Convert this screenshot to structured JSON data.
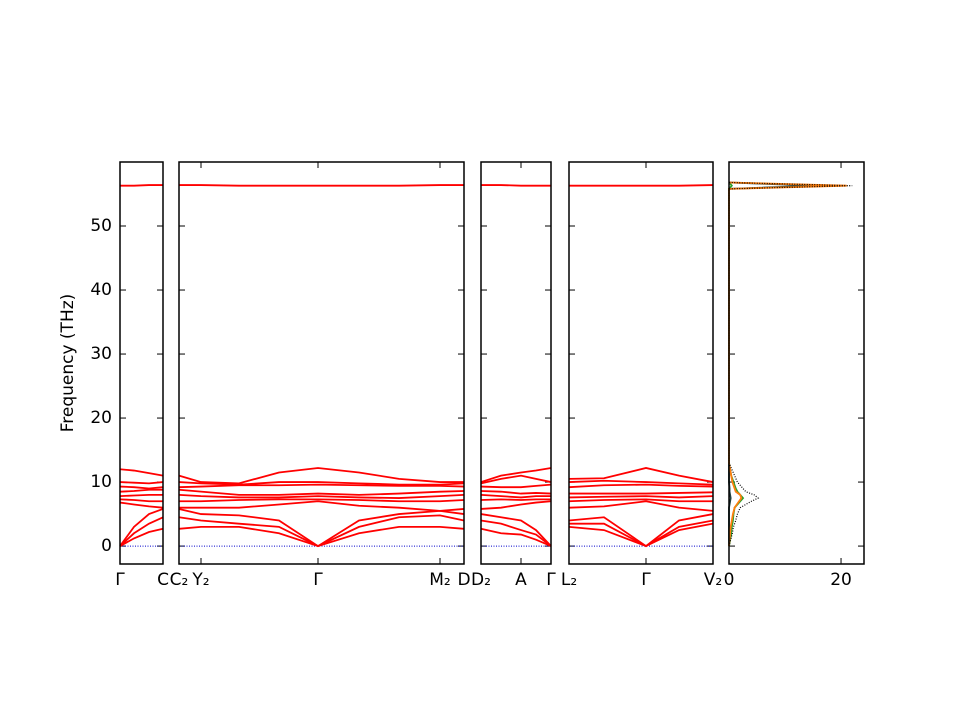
{
  "chart_data": [
    {
      "type": "bands",
      "color": "#ff0000",
      "hline": 0,
      "hline_color": "#0000cc",
      "ylabel": "Frequency (THz)",
      "ylim": [
        -2.8,
        60
      ],
      "yticks": [
        0,
        10,
        20,
        30,
        40,
        50
      ],
      "xlim": [
        0,
        0.43
      ],
      "xticks": [
        {
          "value": 0,
          "label": "Γ"
        },
        {
          "value": 0.43,
          "label": "C"
        }
      ],
      "x": [
        0,
        0.14,
        0.29,
        0.43
      ],
      "bands": [
        [
          0,
          1.2,
          2.2,
          2.7
        ],
        [
          0,
          2,
          3.5,
          4.5
        ],
        [
          0,
          3,
          5,
          5.8
        ],
        [
          6.8,
          6.5,
          6.2,
          6
        ],
        [
          7.3,
          7.2,
          7,
          7
        ],
        [
          7.8,
          7.9,
          8,
          8
        ],
        [
          8.5,
          8.6,
          8.8,
          8.8
        ],
        [
          9.3,
          9.2,
          9,
          9.2
        ],
        [
          10,
          9.9,
          9.8,
          10
        ],
        [
          12,
          11.8,
          11.4,
          11
        ],
        [
          56.3,
          56.3,
          56.4,
          56.4
        ]
      ]
    },
    {
      "type": "bands",
      "color": "#ff0000",
      "hline": 0,
      "hline_color": "#0000cc",
      "ylim": [
        -2.8,
        60
      ],
      "yticks": [
        0,
        10,
        20,
        30,
        40,
        50
      ],
      "xlim": [
        0,
        2.85
      ],
      "xticks": [
        {
          "value": 0,
          "label": "C₂"
        },
        {
          "value": 0.22,
          "label": "Y₂"
        },
        {
          "value": 1.39,
          "label": "Γ"
        },
        {
          "value": 2.61,
          "label": "M₂"
        },
        {
          "value": 2.85,
          "label": "D"
        }
      ],
      "x": [
        0,
        0.22,
        0.6,
        1.0,
        1.39,
        1.8,
        2.2,
        2.61,
        2.85
      ],
      "bands": [
        [
          2.7,
          3,
          3,
          2,
          0,
          2,
          3,
          3,
          2.7
        ],
        [
          4.5,
          4,
          3.5,
          3,
          0,
          3,
          4.5,
          4.8,
          4
        ],
        [
          5.8,
          5,
          4.8,
          4,
          0,
          4,
          5,
          5.5,
          5
        ],
        [
          6,
          6,
          6,
          6.5,
          7,
          6.3,
          6,
          5.5,
          5.8
        ],
        [
          7,
          7,
          7.2,
          7.3,
          7.3,
          7.2,
          7,
          7,
          7.2
        ],
        [
          8,
          7.8,
          7.6,
          7.6,
          7.8,
          7.6,
          7.5,
          7.8,
          8
        ],
        [
          8.8,
          8.5,
          8,
          8,
          8.2,
          8,
          8.2,
          8.5,
          8.6
        ],
        [
          9.2,
          9.3,
          9.5,
          9.5,
          9.6,
          9.5,
          9.4,
          9.4,
          9.3
        ],
        [
          10,
          9.8,
          9.6,
          10,
          10,
          9.8,
          9.6,
          9.6,
          9.8
        ],
        [
          11,
          10,
          9.8,
          11.5,
          12.2,
          11.5,
          10.5,
          10,
          10
        ],
        [
          56.4,
          56.4,
          56.3,
          56.3,
          56.3,
          56.3,
          56.3,
          56.4,
          56.4
        ]
      ]
    },
    {
      "type": "bands",
      "color": "#ff0000",
      "hline": 0,
      "hline_color": "#0000cc",
      "ylim": [
        -2.8,
        60
      ],
      "yticks": [
        0,
        10,
        20,
        30,
        40,
        50
      ],
      "xlim": [
        0,
        0.7
      ],
      "xticks": [
        {
          "value": 0,
          "label": "D₂"
        },
        {
          "value": 0.4,
          "label": "A"
        },
        {
          "value": 0.7,
          "label": "Γ"
        }
      ],
      "x": [
        0,
        0.2,
        0.4,
        0.55,
        0.7
      ],
      "bands": [
        [
          2.7,
          2,
          1.8,
          1,
          0
        ],
        [
          4,
          3.5,
          2.5,
          1.8,
          0
        ],
        [
          5,
          4.5,
          4,
          2.5,
          0
        ],
        [
          5.8,
          6,
          6.5,
          6.8,
          7
        ],
        [
          7.2,
          7.3,
          7.2,
          7.3,
          7.3
        ],
        [
          8,
          7.8,
          7.6,
          7.8,
          7.8
        ],
        [
          8.6,
          8.5,
          8.2,
          8.3,
          8.2
        ],
        [
          9.3,
          9.2,
          9.2,
          9.4,
          9.6
        ],
        [
          9.8,
          10.5,
          11,
          10.5,
          10
        ],
        [
          10,
          11,
          11.5,
          11.8,
          12.2
        ],
        [
          56.4,
          56.4,
          56.3,
          56.3,
          56.3
        ]
      ]
    },
    {
      "type": "bands",
      "color": "#ff0000",
      "hline": 0,
      "hline_color": "#0000cc",
      "ylim": [
        -2.8,
        60
      ],
      "yticks": [
        0,
        10,
        20,
        30,
        40,
        50
      ],
      "xlim": [
        0,
        1.44
      ],
      "xticks": [
        {
          "value": 0,
          "label": "L₂"
        },
        {
          "value": 0.77,
          "label": "Γ"
        },
        {
          "value": 1.44,
          "label": "V₂"
        }
      ],
      "x": [
        0,
        0.35,
        0.77,
        1.1,
        1.44
      ],
      "bands": [
        [
          3,
          2.5,
          0,
          2.5,
          3.5
        ],
        [
          3.5,
          3.5,
          0,
          3,
          4
        ],
        [
          4,
          4.5,
          0,
          4,
          5
        ],
        [
          6,
          6.2,
          7,
          6,
          5.5
        ],
        [
          7,
          7.2,
          7.3,
          7,
          7
        ],
        [
          7.6,
          7.7,
          7.8,
          7.6,
          7.8
        ],
        [
          8.2,
          8.2,
          8.2,
          8.3,
          8.4
        ],
        [
          9.2,
          9.5,
          9.6,
          9.4,
          9.3
        ],
        [
          10,
          10.2,
          10,
          9.8,
          9.6
        ],
        [
          10.5,
          10.6,
          12.2,
          11,
          10
        ],
        [
          56.3,
          56.3,
          56.3,
          56.3,
          56.4
        ]
      ]
    },
    {
      "type": "dos",
      "ylim": [
        -2.8,
        60
      ],
      "yticks": [
        0,
        10,
        20,
        30,
        40,
        50
      ],
      "xlim": [
        0,
        24.1
      ],
      "xticks": [
        0,
        20
      ],
      "y": [
        0,
        1,
        2,
        3,
        4,
        5,
        6,
        7,
        7.5,
        8,
        8.5,
        9,
        10,
        11,
        12,
        13,
        55.8,
        56.3,
        56.8
      ],
      "series": [
        {
          "color": "#2ca02c",
          "style": "solid",
          "values": [
            0,
            0.2,
            0.4,
            0.5,
            0.7,
            0.8,
            1,
            2,
            2.5,
            2,
            1.5,
            1.2,
            0.8,
            0.4,
            0.2,
            0,
            0,
            0.5,
            0
          ]
        },
        {
          "color": "#1f3f3f",
          "style": "solid",
          "values": [
            0,
            0,
            0,
            0,
            0,
            0,
            0,
            0.2,
            0.3,
            0.2,
            0.1,
            0.1,
            0,
            0,
            0,
            0,
            0,
            16,
            0
          ]
        },
        {
          "color": "#ff7f0e",
          "style": "solid",
          "values": [
            0,
            0.1,
            0.2,
            0.3,
            0.5,
            0.7,
            1,
            1.8,
            2.2,
            2,
            1.2,
            1,
            0.6,
            0.4,
            0.2,
            0,
            0,
            21,
            0
          ]
        },
        {
          "color": "#000000",
          "style": "dotted",
          "values": [
            0,
            0.3,
            0.6,
            0.8,
            1.2,
            1.5,
            2,
            4,
            5.2,
            4.5,
            3,
            2.5,
            1.5,
            1,
            0.5,
            0,
            0,
            22,
            0
          ]
        }
      ]
    }
  ]
}
